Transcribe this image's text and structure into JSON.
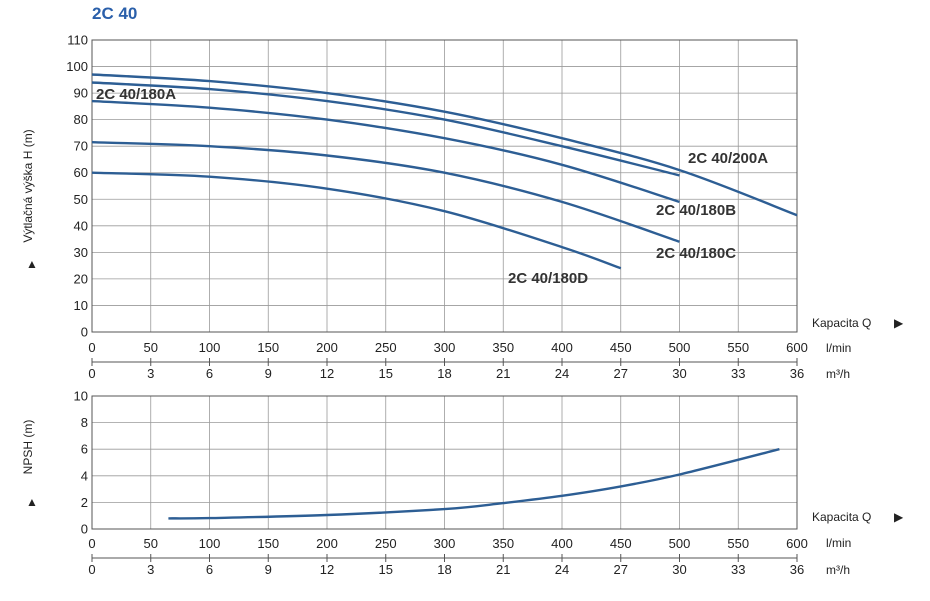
{
  "title": "2C 40",
  "colors": {
    "curve": "#2d5e94",
    "title": "#2a5faa",
    "grid": "#9a9a9a"
  },
  "chart_data": [
    {
      "type": "line",
      "xlabel": "Kapacita Q",
      "ylabel": "Výtlačná výška H (m)",
      "x_unit_primary": "l/min",
      "x_unit_secondary": "m³/h",
      "xlim": [
        0,
        600
      ],
      "ylim": [
        0,
        110
      ],
      "xticks": [
        0,
        50,
        100,
        150,
        200,
        250,
        300,
        350,
        400,
        450,
        500,
        550,
        600
      ],
      "xticks_secondary": [
        0,
        3,
        6,
        9,
        12,
        15,
        18,
        21,
        24,
        27,
        30,
        33,
        36
      ],
      "yticks": [
        0,
        10,
        20,
        30,
        40,
        50,
        60,
        70,
        80,
        90,
        100,
        110
      ],
      "grid": true,
      "series": [
        {
          "name": "2C 40/200A",
          "x": [
            0,
            100,
            200,
            300,
            400,
            500,
            600
          ],
          "y": [
            97,
            94.5,
            90,
            83,
            73,
            61,
            44
          ]
        },
        {
          "name": "2C 40/180A",
          "x": [
            0,
            100,
            200,
            300,
            400,
            500
          ],
          "y": [
            94,
            91.5,
            87,
            80,
            70,
            59
          ]
        },
        {
          "name": "2C 40/180B",
          "x": [
            0,
            100,
            200,
            300,
            400,
            500
          ],
          "y": [
            87,
            84.5,
            80,
            73,
            63,
            49
          ]
        },
        {
          "name": "2C 40/180C",
          "x": [
            0,
            100,
            200,
            300,
            400,
            500
          ],
          "y": [
            71.5,
            70,
            66.5,
            60,
            49,
            34
          ]
        },
        {
          "name": "2C 40/180D",
          "x": [
            0,
            100,
            200,
            300,
            400,
            450
          ],
          "y": [
            60,
            58.5,
            54,
            45.5,
            32,
            24
          ]
        }
      ]
    },
    {
      "type": "line",
      "xlabel": "Kapacita Q",
      "ylabel": "NPSH (m)",
      "x_unit_primary": "l/min",
      "x_unit_secondary": "m³/h",
      "xlim": [
        0,
        600
      ],
      "ylim": [
        0,
        10
      ],
      "xticks": [
        0,
        50,
        100,
        150,
        200,
        250,
        300,
        350,
        400,
        450,
        500,
        550,
        600
      ],
      "xticks_secondary": [
        0,
        3,
        6,
        9,
        12,
        15,
        18,
        21,
        24,
        27,
        30,
        33,
        36
      ],
      "yticks": [
        0,
        2,
        4,
        6,
        8,
        10
      ],
      "grid": true,
      "series": [
        {
          "x": [
            65,
            100,
            200,
            300,
            350,
            400,
            450,
            500,
            585
          ],
          "y": [
            0.8,
            0.82,
            1.05,
            1.5,
            1.95,
            2.5,
            3.2,
            4.1,
            6.0
          ]
        }
      ]
    }
  ]
}
